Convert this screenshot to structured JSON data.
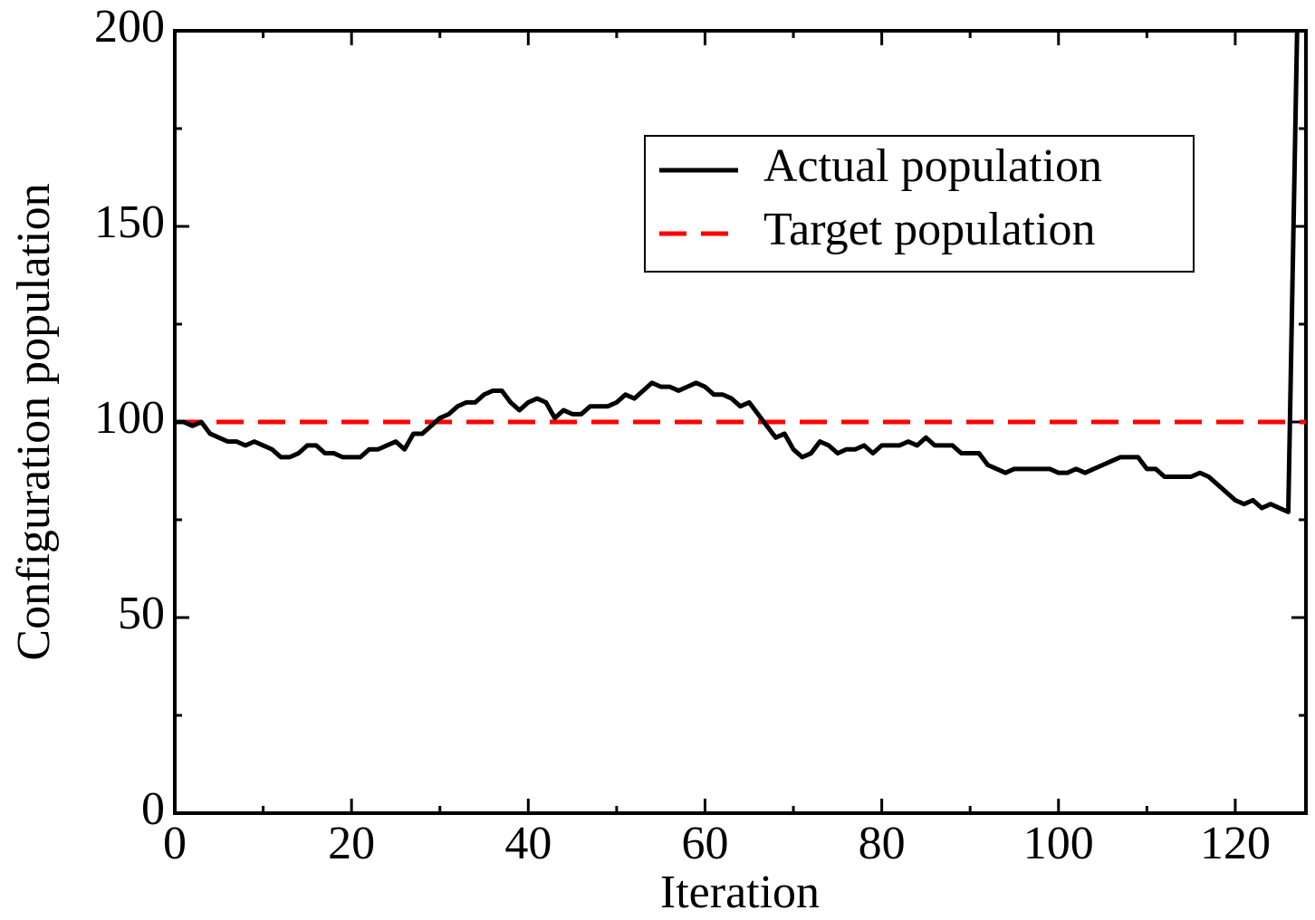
{
  "chart_data": {
    "type": "line",
    "x_label": "Iteration",
    "y_label": "Configuration population",
    "xlim": [
      0,
      128
    ],
    "ylim": [
      0,
      200
    ],
    "xticks": [
      0,
      20,
      40,
      60,
      80,
      100,
      120
    ],
    "yticks": [
      0,
      50,
      100,
      150,
      200
    ],
    "xticks_minor": [
      10,
      30,
      50,
      70,
      90,
      110
    ],
    "yticks_minor": [
      25,
      75,
      125,
      175
    ],
    "legend": "upper right",
    "series": [
      {
        "name": "Actual population",
        "color": "#000000",
        "dash": "solid",
        "x": [
          0,
          1,
          2,
          3,
          4,
          5,
          6,
          7,
          8,
          9,
          10,
          11,
          12,
          13,
          14,
          15,
          16,
          17,
          18,
          19,
          20,
          21,
          22,
          23,
          24,
          25,
          26,
          27,
          28,
          29,
          30,
          31,
          32,
          33,
          34,
          35,
          36,
          37,
          38,
          39,
          40,
          41,
          42,
          43,
          44,
          45,
          46,
          47,
          48,
          49,
          50,
          51,
          52,
          53,
          54,
          55,
          56,
          57,
          58,
          59,
          60,
          61,
          62,
          63,
          64,
          65,
          66,
          67,
          68,
          69,
          70,
          71,
          72,
          73,
          74,
          75,
          76,
          77,
          78,
          79,
          80,
          81,
          82,
          83,
          84,
          85,
          86,
          87,
          88,
          89,
          90,
          91,
          92,
          93,
          94,
          95,
          96,
          97,
          98,
          99,
          100,
          101,
          102,
          103,
          104,
          105,
          106,
          107,
          108,
          109,
          110,
          111,
          112,
          113,
          114,
          115,
          116,
          117,
          118,
          119,
          120,
          121,
          122,
          123,
          124,
          125,
          126,
          127
        ],
        "values": [
          100,
          100,
          99,
          100,
          97,
          96,
          95,
          95,
          94,
          95,
          94,
          93,
          91,
          91,
          92,
          94,
          94,
          92,
          92,
          91,
          91,
          91,
          93,
          93,
          94,
          95,
          93,
          97,
          97,
          99,
          101,
          102,
          104,
          105,
          105,
          107,
          108,
          108,
          105,
          103,
          105,
          106,
          105,
          101,
          103,
          102,
          102,
          104,
          104,
          104,
          105,
          107,
          106,
          108,
          110,
          109,
          109,
          108,
          109,
          110,
          109,
          107,
          107,
          106,
          104,
          105,
          102,
          99,
          96,
          97,
          93,
          91,
          92,
          95,
          94,
          92,
          93,
          93,
          94,
          92,
          94,
          94,
          94,
          95,
          94,
          96,
          94,
          94,
          94,
          92,
          92,
          92,
          89,
          88,
          87,
          88,
          88,
          88,
          88,
          88,
          87,
          87,
          88,
          87,
          88,
          89,
          90,
          91,
          91,
          91,
          88,
          88,
          86,
          86,
          86,
          86,
          87,
          86,
          84,
          82,
          80,
          79,
          80,
          78,
          79,
          78,
          77,
          200
        ]
      },
      {
        "name": "Target population",
        "color": "#ff0000",
        "dash": "dashed",
        "x": [
          0,
          128
        ],
        "values": [
          100,
          100
        ]
      }
    ]
  }
}
